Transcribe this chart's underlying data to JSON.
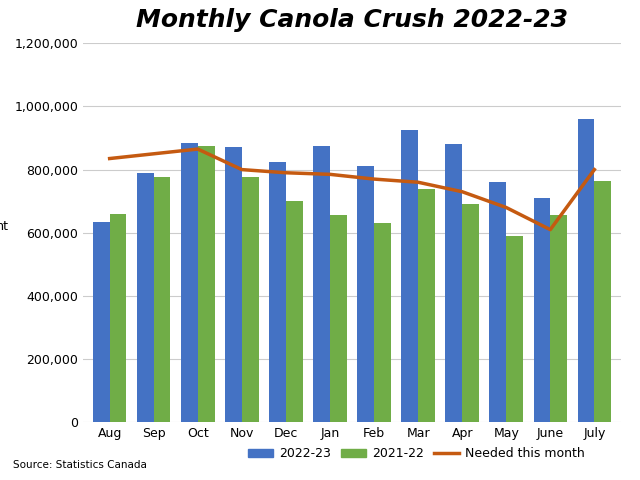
{
  "title": "Monthly Canola Crush 2022-23",
  "months": [
    "Aug",
    "Sep",
    "Oct",
    "Nov",
    "Dec",
    "Jan",
    "Feb",
    "Mar",
    "Apr",
    "May",
    "June",
    "July"
  ],
  "series_2022": [
    635000,
    790000,
    885000,
    870000,
    825000,
    875000,
    810000,
    925000,
    880000,
    760000,
    710000,
    961683
  ],
  "series_2021": [
    660000,
    775000,
    875000,
    775000,
    700000,
    655000,
    630000,
    740000,
    690000,
    590000,
    655000,
    765000
  ],
  "needed": [
    835000,
    850000,
    865000,
    800000,
    790000,
    785000,
    770000,
    760000,
    730000,
    680000,
    610000,
    800000
  ],
  "bar_color_2022": "#4472C4",
  "bar_color_2021": "#70AD47",
  "line_color_needed": "#C55A11",
  "ylabel": "mt",
  "ylim": [
    0,
    1200000
  ],
  "yticks": [
    0,
    200000,
    400000,
    600000,
    800000,
    1000000,
    1200000
  ],
  "source_text": "Source: Statistics Canada",
  "legend_labels": [
    "2022-23",
    "2021-22",
    "Needed this month"
  ],
  "background_color": "#ffffff",
  "grid_color": "#cccccc",
  "title_fontsize": 18,
  "axis_fontsize": 9,
  "legend_fontsize": 9
}
